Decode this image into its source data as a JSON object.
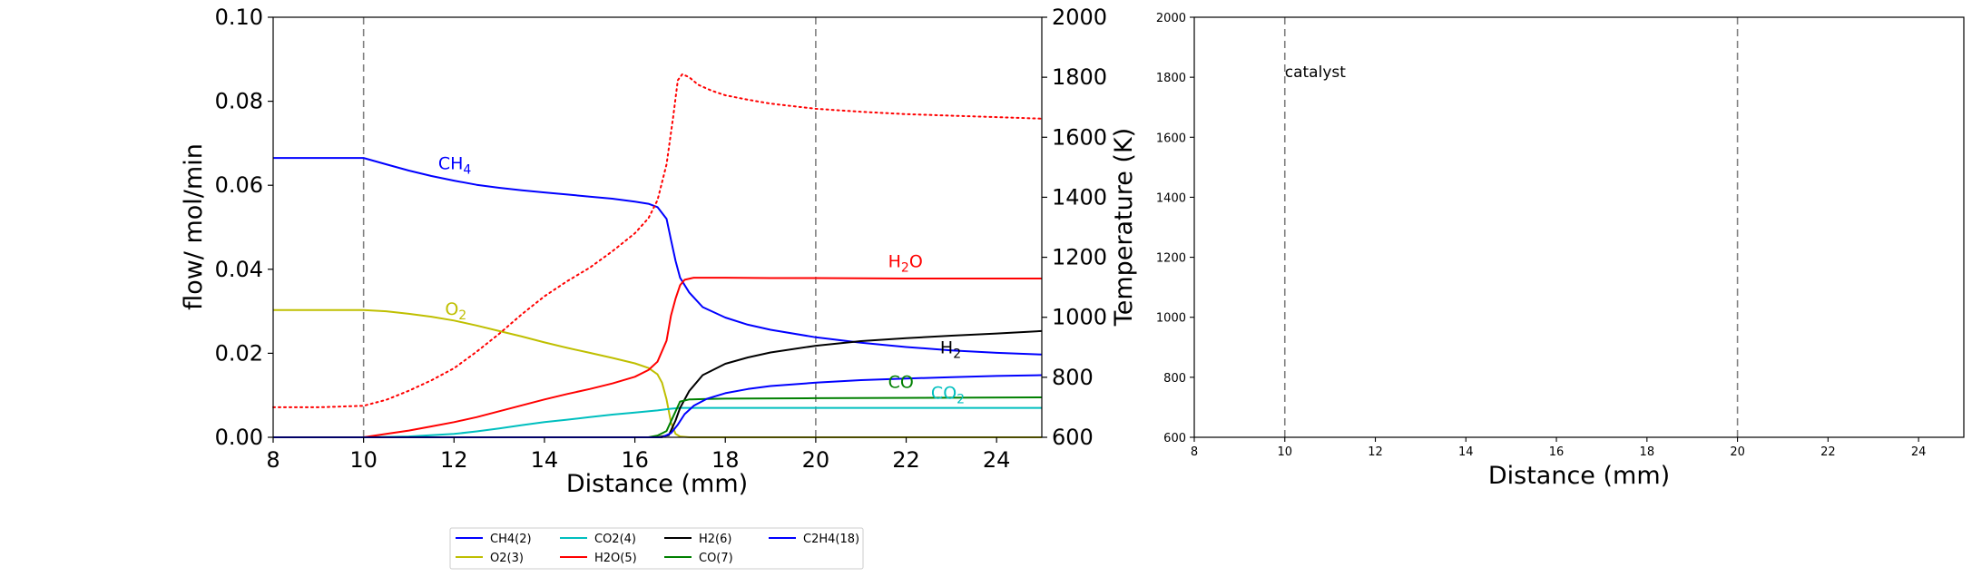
{
  "chart_data": [
    {
      "type": "line",
      "xlabel": "Distance (mm)",
      "ylabel": "flow/ mol/min",
      "y2label": "Temperature (K)",
      "xlim": [
        8,
        25
      ],
      "ylim": [
        0,
        0.1
      ],
      "y2lim": [
        600,
        2000
      ],
      "xticks": [
        8,
        10,
        12,
        14,
        16,
        18,
        20,
        22,
        24
      ],
      "xtick_labels": [
        "8",
        "10",
        "12",
        "14",
        "16",
        "18",
        "20",
        "22",
        "24"
      ],
      "yticks": [
        0,
        0.02,
        0.04,
        0.06,
        0.08,
        0.1
      ],
      "ytick_labels": [
        "0.00",
        "0.02",
        "0.04",
        "0.06",
        "0.08",
        "0.10"
      ],
      "y2ticks": [
        600,
        800,
        1000,
        1200,
        1400,
        1600,
        1800,
        2000
      ],
      "y2tick_labels": [
        "600",
        "800",
        "1000",
        "1200",
        "1400",
        "1600",
        "1800",
        "2000"
      ],
      "vlines": [
        10,
        20
      ],
      "grid": false,
      "legend_placement": "below",
      "series": [
        {
          "name": "CH4(2)",
          "color": "#0000ff",
          "axis": "left",
          "x": [
            8,
            10,
            10.5,
            11,
            11.5,
            12,
            12.5,
            13,
            13.5,
            14,
            14.5,
            15,
            15.5,
            16,
            16.3,
            16.5,
            16.7,
            16.8,
            16.9,
            17,
            17.2,
            17.5,
            18,
            18.5,
            19,
            20,
            21,
            22,
            23,
            24,
            25
          ],
          "y": [
            0.0665,
            0.0665,
            0.065,
            0.0635,
            0.0622,
            0.0611,
            0.0601,
            0.0594,
            0.0588,
            0.0583,
            0.0578,
            0.0573,
            0.0568,
            0.0561,
            0.0556,
            0.0548,
            0.052,
            0.047,
            0.042,
            0.038,
            0.0345,
            0.031,
            0.0285,
            0.0268,
            0.0256,
            0.0238,
            0.0225,
            0.0215,
            0.0207,
            0.0201,
            0.0197
          ]
        },
        {
          "name": "O2(3)",
          "color": "#bfbf00",
          "axis": "left",
          "x": [
            8,
            10,
            10.5,
            11,
            11.5,
            12,
            12.5,
            13,
            13.5,
            14,
            14.5,
            15,
            15.5,
            16,
            16.3,
            16.5,
            16.6,
            16.7,
            16.8,
            16.9,
            17,
            17.2,
            18,
            20,
            25
          ],
          "y": [
            0.0303,
            0.0303,
            0.03,
            0.0294,
            0.0287,
            0.0278,
            0.0266,
            0.0253,
            0.024,
            0.0226,
            0.0213,
            0.0201,
            0.0189,
            0.0176,
            0.0165,
            0.015,
            0.013,
            0.009,
            0.0035,
            0.0008,
            0.0002,
            0.0,
            0.0,
            0.0,
            0.0
          ]
        },
        {
          "name": "CO2(4)",
          "color": "#00bfbf",
          "axis": "left",
          "x": [
            8,
            10,
            11,
            12,
            12.5,
            13,
            13.5,
            14,
            14.5,
            15,
            15.5,
            16,
            16.5,
            16.8,
            17,
            17.2,
            18,
            20,
            25
          ],
          "y": [
            0.0,
            0.0,
            0.0002,
            0.0008,
            0.0014,
            0.0021,
            0.0029,
            0.0036,
            0.0042,
            0.0048,
            0.0054,
            0.0059,
            0.0064,
            0.0068,
            0.007,
            0.007,
            0.007,
            0.007,
            0.007
          ]
        },
        {
          "name": "H2O(5)",
          "color": "#ff0000",
          "axis": "left",
          "x": [
            8,
            10,
            10.5,
            11,
            11.5,
            12,
            12.5,
            13,
            13.5,
            14,
            14.5,
            15,
            15.5,
            16,
            16.3,
            16.5,
            16.7,
            16.8,
            16.9,
            17,
            17.1,
            17.3,
            17.6,
            18,
            19,
            20,
            22,
            24,
            25
          ],
          "y": [
            0.0,
            0.0,
            0.0008,
            0.0016,
            0.0026,
            0.0036,
            0.0048,
            0.0062,
            0.0076,
            0.009,
            0.0103,
            0.0115,
            0.0128,
            0.0144,
            0.016,
            0.018,
            0.023,
            0.029,
            0.033,
            0.0362,
            0.0375,
            0.038,
            0.038,
            0.038,
            0.0379,
            0.0379,
            0.0378,
            0.0378,
            0.0378
          ]
        },
        {
          "name": "H2(6)",
          "color": "#000000",
          "axis": "left",
          "x": [
            8,
            16.5,
            16.75,
            16.9,
            17,
            17.2,
            17.5,
            18,
            18.5,
            19,
            20,
            21,
            22,
            23,
            24,
            25
          ],
          "y": [
            0.0,
            0.0,
            0.0005,
            0.004,
            0.007,
            0.011,
            0.0148,
            0.0175,
            0.019,
            0.0202,
            0.0218,
            0.0229,
            0.0236,
            0.0242,
            0.0247,
            0.0253
          ]
        },
        {
          "name": "CO(7)",
          "color": "#008000",
          "axis": "left",
          "x": [
            8,
            16.3,
            16.5,
            16.7,
            16.85,
            17,
            17.2,
            17.5,
            18,
            20,
            25
          ],
          "y": [
            0.0,
            0.0,
            0.0004,
            0.0015,
            0.005,
            0.0085,
            0.009,
            0.0091,
            0.0092,
            0.0093,
            0.0095
          ]
        },
        {
          "name": "C2H4(18)",
          "color": "#0000ff",
          "axis": "left",
          "x": [
            8,
            16.6,
            16.8,
            16.95,
            17.1,
            17.3,
            17.6,
            18,
            18.5,
            19,
            20,
            21,
            22,
            23,
            24,
            25
          ],
          "y": [
            0.0,
            0.0,
            0.001,
            0.003,
            0.0055,
            0.0075,
            0.0092,
            0.0105,
            0.0115,
            0.0122,
            0.013,
            0.0136,
            0.014,
            0.0143,
            0.0146,
            0.0148
          ]
        },
        {
          "name": "",
          "color": "#ff0000",
          "axis": "right",
          "dotted": true,
          "x": [
            8,
            9,
            10,
            10.5,
            11,
            11.5,
            12,
            12.5,
            13,
            13.5,
            14,
            14.5,
            15,
            15.5,
            16,
            16.3,
            16.5,
            16.7,
            16.85,
            16.95,
            17.05,
            17.2,
            17.4,
            17.7,
            18,
            18.5,
            19,
            20,
            21,
            22,
            23,
            24,
            25
          ],
          "y": [
            700,
            700,
            705,
            725,
            755,
            790,
            830,
            885,
            945,
            1010,
            1070,
            1120,
            1165,
            1220,
            1280,
            1330,
            1390,
            1510,
            1670,
            1790,
            1810,
            1800,
            1775,
            1755,
            1740,
            1725,
            1712,
            1695,
            1685,
            1677,
            1672,
            1667,
            1662
          ]
        }
      ],
      "annotations": [
        {
          "text": "CH",
          "sub": "4",
          "x": 11.65,
          "y": 0.0638,
          "color": "#0000ff"
        },
        {
          "text": "O",
          "sub": "2",
          "x": 11.8,
          "y": 0.0292,
          "color": "#bfbf00"
        },
        {
          "text": "H",
          "sub": "2",
          "post": "O",
          "x": 21.6,
          "y": 0.0405,
          "color": "#ff0000"
        },
        {
          "text": "H",
          "sub": "2",
          "x": 22.75,
          "y": 0.02,
          "color": "#000000"
        },
        {
          "text": "CO",
          "x": 21.6,
          "y": 0.0118,
          "color": "#008000"
        },
        {
          "text": "CO",
          "sub": "2",
          "x": 22.55,
          "y": 0.0092,
          "color": "#00bfbf"
        }
      ],
      "legend_entries": [
        "CH4(2)",
        "O2(3)",
        "CO2(4)",
        "H2O(5)",
        "H2(6)",
        "CO(7)",
        "C2H4(18)"
      ]
    },
    {
      "type": "line",
      "xlabel": "Distance (mm)",
      "ylabel": "",
      "xlim": [
        8,
        25
      ],
      "ylim": [
        600,
        2000
      ],
      "xticks": [
        8,
        10,
        12,
        14,
        16,
        18,
        20,
        22,
        24
      ],
      "xtick_labels": [
        "8",
        "10",
        "12",
        "14",
        "16",
        "18",
        "20",
        "22",
        "24"
      ],
      "yticks": [
        600,
        800,
        1000,
        1200,
        1400,
        1600,
        1800,
        2000
      ],
      "ytick_labels": [
        "600",
        "800",
        "1000",
        "1200",
        "1400",
        "1600",
        "1800",
        "2000"
      ],
      "vlines": [
        10,
        20
      ],
      "grid": false,
      "series": [],
      "annotations": [
        {
          "text": "catalyst",
          "x": 10.0,
          "y": 1800,
          "color": "#000000"
        }
      ]
    }
  ]
}
